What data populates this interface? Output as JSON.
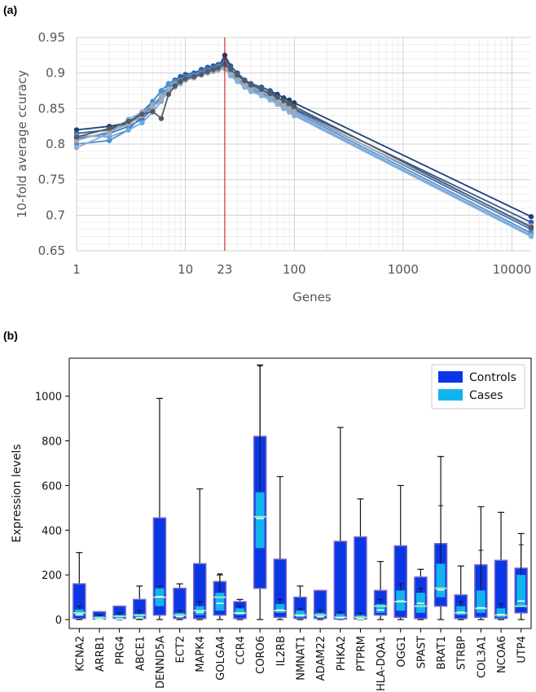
{
  "panels": {
    "a_label": "(a)",
    "b_label": "(b)"
  },
  "chart_data": [
    {
      "type": "line",
      "xlabel": "Genes",
      "ylabel": "10-fold average ccuracy",
      "x_scale": "log",
      "xlim": [
        1,
        15000
      ],
      "ylim": [
        0.65,
        0.95
      ],
      "x_ticks": [
        1,
        10,
        100,
        1000,
        10000
      ],
      "x_tick_labels": [
        "1",
        "10",
        "100",
        "1000",
        "10000"
      ],
      "y_ticks": [
        0.65,
        0.7,
        0.75,
        0.8,
        0.85,
        0.9,
        0.95
      ],
      "y_tick_labels": [
        "0.65",
        "0.7",
        "0.75",
        "0.8",
        "0.85",
        "0.9",
        "0.95"
      ],
      "grid": true,
      "marker": {
        "x": 23,
        "label": "23",
        "color": "#cc0000"
      },
      "x": [
        1,
        2,
        3,
        4,
        5,
        6,
        7,
        8,
        9,
        10,
        12,
        14,
        16,
        18,
        20,
        23,
        26,
        30,
        35,
        40,
        50,
        60,
        70,
        80,
        90,
        100,
        15000
      ],
      "series": [
        {
          "color": "#1f3f7a",
          "values": [
            0.82,
            0.825,
            0.83,
            0.84,
            0.855,
            0.865,
            0.88,
            0.885,
            0.89,
            0.893,
            0.896,
            0.9,
            0.902,
            0.905,
            0.908,
            0.925,
            0.91,
            0.9,
            0.89,
            0.885,
            0.88,
            0.875,
            0.87,
            0.865,
            0.862,
            0.858,
            0.698
          ]
        },
        {
          "color": "#2b5c9e",
          "values": [
            0.815,
            0.82,
            0.83,
            0.845,
            0.86,
            0.875,
            0.885,
            0.89,
            0.895,
            0.898,
            0.9,
            0.905,
            0.908,
            0.91,
            0.912,
            0.918,
            0.91,
            0.9,
            0.89,
            0.885,
            0.88,
            0.875,
            0.865,
            0.86,
            0.855,
            0.85,
            0.69
          ]
        },
        {
          "color": "#3b75b8",
          "values": [
            0.808,
            0.815,
            0.825,
            0.835,
            0.85,
            0.87,
            0.88,
            0.885,
            0.89,
            0.895,
            0.898,
            0.902,
            0.905,
            0.907,
            0.91,
            0.915,
            0.905,
            0.895,
            0.885,
            0.88,
            0.875,
            0.87,
            0.865,
            0.86,
            0.852,
            0.848,
            0.68
          ]
        },
        {
          "color": "#4f8fd0",
          "values": [
            0.8,
            0.805,
            0.82,
            0.84,
            0.86,
            0.875,
            0.885,
            0.888,
            0.89,
            0.893,
            0.897,
            0.9,
            0.903,
            0.906,
            0.909,
            0.912,
            0.9,
            0.892,
            0.884,
            0.878,
            0.872,
            0.866,
            0.86,
            0.855,
            0.85,
            0.845,
            0.675
          ]
        },
        {
          "color": "#6ea8dc",
          "values": [
            0.812,
            0.81,
            0.82,
            0.83,
            0.845,
            0.86,
            0.875,
            0.88,
            0.885,
            0.89,
            0.895,
            0.898,
            0.9,
            0.902,
            0.904,
            0.908,
            0.898,
            0.89,
            0.882,
            0.876,
            0.87,
            0.865,
            0.858,
            0.852,
            0.846,
            0.842,
            0.672
          ]
        },
        {
          "color": "#8ab0d6",
          "values": [
            0.795,
            0.815,
            0.835,
            0.845,
            0.855,
            0.868,
            0.878,
            0.884,
            0.888,
            0.89,
            0.893,
            0.897,
            0.9,
            0.903,
            0.905,
            0.906,
            0.896,
            0.888,
            0.88,
            0.874,
            0.868,
            0.862,
            0.856,
            0.85,
            0.845,
            0.84,
            0.67
          ]
        },
        {
          "color": "#a3a8b3",
          "values": [
            0.805,
            0.818,
            0.828,
            0.84,
            0.852,
            0.862,
            0.872,
            0.88,
            0.886,
            0.89,
            0.894,
            0.898,
            0.901,
            0.903,
            0.905,
            0.91,
            0.902,
            0.894,
            0.886,
            0.88,
            0.874,
            0.868,
            0.862,
            0.856,
            0.85,
            0.846,
            0.685
          ]
        },
        {
          "color": "#555a63",
          "values": [
            0.81,
            0.822,
            0.832,
            0.842,
            0.846,
            0.836,
            0.87,
            0.882,
            0.888,
            0.892,
            0.895,
            0.898,
            0.902,
            0.905,
            0.907,
            0.912,
            0.905,
            0.897,
            0.889,
            0.883,
            0.877,
            0.871,
            0.866,
            0.861,
            0.857,
            0.853,
            0.683
          ]
        }
      ]
    },
    {
      "type": "box",
      "xlabel": "",
      "ylabel": "Expression levels",
      "ylim": [
        -40,
        1170
      ],
      "y_ticks": [
        0,
        200,
        400,
        600,
        800,
        1000
      ],
      "y_tick_labels": [
        "0",
        "200",
        "400",
        "600",
        "800",
        "1000"
      ],
      "legend": {
        "placement": "top-right",
        "entries": [
          {
            "name": "Controls",
            "color": "#0a37e6"
          },
          {
            "name": "Cases",
            "color": "#12b4ee"
          }
        ]
      },
      "categories": [
        "KCNA2",
        "ARRB1",
        "PRG4",
        "ABCE1",
        "DENND5A",
        "ECT2",
        "MAPK4",
        "GOLGA4",
        "CCR4",
        "CORO6",
        "IL2RB",
        "NMNAT1",
        "ADAM22",
        "PHKA2",
        "PTPRM",
        "HLA-DQA1",
        "OGG1",
        "SPAST",
        "BRAT1",
        "STRBP",
        "COL3A1",
        "NCOA6",
        "UTP4"
      ],
      "series": [
        {
          "name": "Controls",
          "boxes": [
            {
              "whislo": 0,
              "q1": 5,
              "med": 30,
              "q3": 160,
              "whishi": 300
            },
            {
              "whislo": 0,
              "q1": 2,
              "med": 8,
              "q3": 35,
              "whishi": 35
            },
            {
              "whislo": 0,
              "q1": 5,
              "med": 15,
              "q3": 60,
              "whishi": 60
            },
            {
              "whislo": 0,
              "q1": 5,
              "med": 20,
              "q3": 90,
              "whishi": 150
            },
            {
              "whislo": 0,
              "q1": 20,
              "med": 100,
              "q3": 455,
              "whishi": 990
            },
            {
              "whislo": 0,
              "q1": 5,
              "med": 20,
              "q3": 140,
              "whishi": 160
            },
            {
              "whislo": 0,
              "q1": 5,
              "med": 40,
              "q3": 250,
              "whishi": 585
            },
            {
              "whislo": 0,
              "q1": 20,
              "med": 100,
              "q3": 170,
              "whishi": 200
            },
            {
              "whislo": 0,
              "q1": 5,
              "med": 30,
              "q3": 80,
              "whishi": 90
            },
            {
              "whislo": 0,
              "q1": 140,
              "med": 460,
              "q3": 820,
              "whishi": 1140
            },
            {
              "whislo": 0,
              "q1": 10,
              "med": 40,
              "q3": 270,
              "whishi": 640
            },
            {
              "whislo": 0,
              "q1": 5,
              "med": 20,
              "q3": 100,
              "whishi": 150
            },
            {
              "whislo": 0,
              "q1": 5,
              "med": 20,
              "q3": 130,
              "whishi": 130
            },
            {
              "whislo": 0,
              "q1": 2,
              "med": 10,
              "q3": 350,
              "whishi": 860
            },
            {
              "whislo": 0,
              "q1": 2,
              "med": 10,
              "q3": 370,
              "whishi": 540
            },
            {
              "whislo": 0,
              "q1": 20,
              "med": 60,
              "q3": 130,
              "whishi": 260
            },
            {
              "whislo": 0,
              "q1": 10,
              "med": 80,
              "q3": 330,
              "whishi": 600
            },
            {
              "whislo": 0,
              "q1": 5,
              "med": 60,
              "q3": 190,
              "whishi": 225
            },
            {
              "whislo": 0,
              "q1": 60,
              "med": 140,
              "q3": 340,
              "whishi": 730
            },
            {
              "whislo": 0,
              "q1": 5,
              "med": 30,
              "q3": 110,
              "whishi": 240
            },
            {
              "whislo": 0,
              "q1": 10,
              "med": 50,
              "q3": 245,
              "whishi": 505
            },
            {
              "whislo": 0,
              "q1": 5,
              "med": 20,
              "q3": 265,
              "whishi": 480
            },
            {
              "whislo": 0,
              "q1": 30,
              "med": 60,
              "q3": 230,
              "whishi": 385
            }
          ]
        },
        {
          "name": "Cases",
          "boxes": [
            {
              "whislo": 0,
              "q1": 15,
              "med": 30,
              "q3": 45,
              "whishi": 60
            },
            {
              "whislo": 0,
              "q1": 2,
              "med": 8,
              "q3": 15,
              "whishi": 20
            },
            {
              "whislo": 0,
              "q1": 5,
              "med": 10,
              "q3": 20,
              "whishi": 30
            },
            {
              "whislo": 0,
              "q1": 5,
              "med": 15,
              "q3": 25,
              "whishi": 40
            },
            {
              "whislo": 0,
              "q1": 60,
              "med": 110,
              "q3": 140,
              "whishi": 150
            },
            {
              "whislo": 0,
              "q1": 10,
              "med": 20,
              "q3": 30,
              "whishi": 40
            },
            {
              "whislo": 0,
              "q1": 20,
              "med": 40,
              "q3": 60,
              "whishi": 80
            },
            {
              "whislo": 0,
              "q1": 40,
              "med": 80,
              "q3": 120,
              "whishi": 205
            },
            {
              "whislo": 0,
              "q1": 20,
              "med": 35,
              "q3": 50,
              "whishi": 60
            },
            {
              "whislo": 0,
              "q1": 320,
              "med": 460,
              "q3": 570,
              "whishi": 1135
            },
            {
              "whislo": 0,
              "q1": 30,
              "med": 50,
              "q3": 70,
              "whishi": 90
            },
            {
              "whislo": 0,
              "q1": 10,
              "med": 25,
              "q3": 40,
              "whishi": 50
            },
            {
              "whislo": 0,
              "q1": 10,
              "med": 20,
              "q3": 30,
              "whishi": 40
            },
            {
              "whislo": 0,
              "q1": 5,
              "med": 15,
              "q3": 25,
              "whishi": 35
            },
            {
              "whislo": 0,
              "q1": 5,
              "med": 10,
              "q3": 20,
              "whishi": 30
            },
            {
              "whislo": 0,
              "q1": 30,
              "med": 50,
              "q3": 70,
              "whishi": 90
            },
            {
              "whislo": 0,
              "q1": 40,
              "med": 90,
              "q3": 130,
              "whishi": 160
            },
            {
              "whislo": 0,
              "q1": 30,
              "med": 80,
              "q3": 120,
              "whishi": 140
            },
            {
              "whislo": 0,
              "q1": 100,
              "med": 140,
              "q3": 250,
              "whishi": 510
            },
            {
              "whislo": 0,
              "q1": 20,
              "med": 40,
              "q3": 60,
              "whishi": 80
            },
            {
              "whislo": 0,
              "q1": 30,
              "med": 60,
              "q3": 130,
              "whishi": 310
            },
            {
              "whislo": 0,
              "q1": 10,
              "med": 30,
              "q3": 50,
              "whishi": 70
            },
            {
              "whislo": 0,
              "q1": 60,
              "med": 90,
              "q3": 200,
              "whishi": 335
            }
          ]
        }
      ]
    }
  ]
}
